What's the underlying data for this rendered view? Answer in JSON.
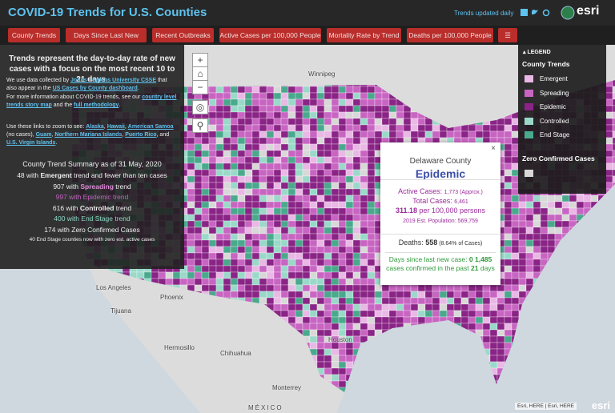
{
  "header": {
    "title": "COVID-19 Trends for U.S. Counties",
    "updated": "Trends updated daily",
    "logo": "esri"
  },
  "tabs": [
    "County Trends",
    "Days Since Last New Case",
    "Recent Outbreaks",
    "Active Cases per 100,000 People",
    "Mortality Rate by Trend",
    "Deaths per 100,000 People"
  ],
  "panel": {
    "headline": "Trends represent the day-to-day rate of new cases with a focus on the most recent 10 to 21 days.",
    "paragraphs": [
      [
        {
          "text": "We use data collected by "
        },
        {
          "text": "Johns Hopkins University CSSE",
          "link": true
        },
        {
          "text": " that also appear in the "
        },
        {
          "text": "US Cases by County dashboard",
          "link": true
        },
        {
          "text": "."
        }
      ],
      [
        {
          "text": "For more information about COVID-19 trends, see our "
        },
        {
          "text": "country level trends story map",
          "link": true
        },
        {
          "text": " and the "
        },
        {
          "text": "full methodology",
          "link": true
        },
        {
          "text": "."
        }
      ],
      [
        {
          "text": "Use these links to zoom to see: "
        },
        {
          "text": "Alaska",
          "link": true
        },
        {
          "text": ", "
        },
        {
          "text": "Hawaii",
          "link": true
        },
        {
          "text": ", "
        },
        {
          "text": "American Samoa",
          "link": true
        },
        {
          "text": " (no cases), "
        },
        {
          "text": "Guam",
          "link": true
        },
        {
          "text": ", "
        },
        {
          "text": "Northern Mariana Islands",
          "link": true
        },
        {
          "text": ", "
        },
        {
          "text": "Puerto Rico",
          "link": true
        },
        {
          "text": ", and "
        },
        {
          "text": "U.S. Virgin Islands",
          "link": true
        },
        {
          "text": "."
        }
      ]
    ],
    "summary_title": "County Trend Summary as of 31 May, 2020",
    "summary": [
      [
        {
          "text": "48 with "
        },
        {
          "text": "Emergent",
          "bold": true
        },
        {
          "text": " trend and fewer than ten cases"
        }
      ],
      [
        {
          "text": "907 with "
        },
        {
          "text": "Spreading",
          "bold": true,
          "color": "#e08ad8"
        },
        {
          "text": " trend"
        }
      ],
      [
        {
          "text": "997 with Epidemic trend",
          "color": "#c25fc0"
        }
      ],
      [
        {
          "text": "616 with "
        },
        {
          "text": "Controlled",
          "bold": true
        },
        {
          "text": " trend"
        }
      ],
      [
        {
          "text": "400 with End Stage trend",
          "color": "#8fd8c6"
        }
      ],
      [
        {
          "text": "174 with Zero Confirmed Cases"
        }
      ]
    ],
    "note": "40 End Stage counties now with zero est. active cases"
  },
  "popup": {
    "county": "Delaware County",
    "trend": "Epidemic",
    "lines": [
      [
        {
          "text": "Active Cases: ",
          "color": "#9b2c9b"
        },
        {
          "text": "1,773",
          "small": true,
          "color": "#9b2c9b"
        },
        {
          "text": " (Approx.)",
          "small": true,
          "color": "#9b2c9b"
        }
      ],
      [
        {
          "text": "Total Cases: ",
          "color": "#9b2c9b"
        },
        {
          "text": "6,461",
          "small": true,
          "color": "#9b2c9b"
        }
      ],
      [
        {
          "text": "311.18",
          "bold": true,
          "color": "#9b2c9b"
        },
        {
          "text": " per 100,000 persons",
          "color": "#9b2c9b"
        }
      ],
      [
        {
          "text": "2019 Est. Population: 569,759",
          "small": true,
          "color": "#9b2c9b"
        }
      ]
    ],
    "deaths": [
      {
        "text": "Deaths: "
      },
      {
        "text": "558",
        "bold": true
      },
      {
        "text": " (8.64% of Cases)",
        "small": true
      }
    ],
    "recent": [
      {
        "text": "Days since last new case: ",
        "color": "#2e9a3a"
      },
      {
        "text": "0",
        "bold": true,
        "color": "#2e9a3a"
      },
      {
        "text": " "
      },
      {
        "text": "1,485",
        "bold": true,
        "color": "#2e9a3a"
      },
      {
        "text": " cases confirmed in the past ",
        "color": "#2e9a3a"
      },
      {
        "text": "21",
        "bold": true,
        "color": "#2e9a3a"
      },
      {
        "text": " days",
        "color": "#2e9a3a"
      }
    ]
  },
  "legend": {
    "title": "LEGEND",
    "group": "County Trends",
    "items": [
      {
        "label": "Emergent",
        "color": "#e9b8e5"
      },
      {
        "label": "Spreading",
        "color": "#c865c2"
      },
      {
        "label": "Epidemic",
        "color": "#8a2486"
      },
      {
        "label": "Controlled",
        "color": "#9ad9c9"
      },
      {
        "label": "End Stage",
        "color": "#4aa98d"
      }
    ],
    "zero_title": "Zero Confirmed Cases",
    "zero_color": "#d8d8d8"
  },
  "map_labels": [
    "Winnipeg",
    "Los Angeles",
    "Tijuana",
    "Phoenix",
    "Hermosillo",
    "Chihuahua",
    "Monterrey",
    "Houston",
    "MÉXICO"
  ],
  "attribution": "Esri, HERE | Esri, HERE",
  "footer_logo": "esri"
}
